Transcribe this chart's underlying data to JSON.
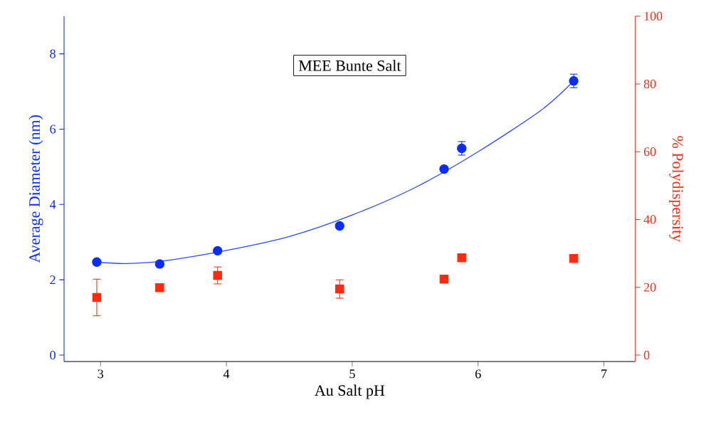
{
  "chart_data": {
    "type": "scatter",
    "title": "MEE Bunte Salt",
    "xlabel": "Au Salt pH",
    "ylabel": "Average Diameter (nm)",
    "y2label": "% Polydispersity",
    "xlim": [
      2.71,
      7.25
    ],
    "xticks": [
      3,
      4,
      5,
      6,
      7
    ],
    "ylim": [
      -0.17,
      9.0
    ],
    "yticks": [
      0,
      2,
      4,
      6,
      8
    ],
    "y2lim": [
      -1.9,
      100
    ],
    "y2ticks": [
      0,
      20,
      40,
      60,
      80,
      100
    ],
    "series": [
      {
        "type": "line",
        "marker": "none",
        "color": "#2b4cff",
        "x": [
          2.97,
          3.2,
          3.5,
          4.0,
          4.5,
          5.0,
          5.5,
          6.0,
          6.5,
          6.76
        ],
        "values": [
          2.47,
          2.43,
          2.5,
          2.78,
          3.15,
          3.72,
          4.45,
          5.4,
          6.5,
          7.28
        ]
      },
      {
        "marker": "circle",
        "color": "#0a2cff",
        "x": [
          2.97,
          3.93,
          4.9,
          5.87,
          6.76
        ],
        "values": [
          2.47,
          2.77,
          3.43,
          5.49,
          7.28
        ],
        "errors": [
          null,
          null,
          null,
          0.18,
          0.18
        ]
      },
      {
        "marker": "circle",
        "color": "#0a2cff",
        "x": [
          3.47,
          5.73
        ],
        "values": [
          2.42,
          4.94
        ]
      },
      {
        "marker": "square",
        "axis": "y2",
        "color": "#ff2a0f",
        "x": [
          2.97,
          3.93,
          4.9,
          5.87,
          6.76
        ],
        "values": [
          17.0,
          23.5,
          19.5,
          28.7,
          28.5
        ],
        "errors": [
          5.4,
          2.5,
          2.7,
          null,
          null
        ]
      },
      {
        "marker": "square",
        "axis": "y2",
        "color": "#ff2a0f",
        "x": [
          3.47,
          5.73
        ],
        "values": [
          19.9,
          22.4
        ]
      }
    ]
  }
}
